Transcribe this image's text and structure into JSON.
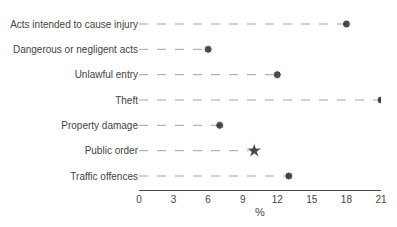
{
  "chart_data": {
    "type": "lollipop",
    "orientation": "horizontal",
    "categories": [
      "Acts intended to cause injury",
      "Dangerous or negligent acts",
      "Unlawful entry",
      "Theft",
      "Property damage",
      "Public order",
      "Traffic offences"
    ],
    "values": [
      18.0,
      6.0,
      12.0,
      21.0,
      7.0,
      10.0,
      13.0
    ],
    "markers": [
      "circle",
      "circle",
      "circle",
      "circle",
      "circle",
      "star",
      "circle"
    ],
    "color": "black",
    "line_style": "dashed",
    "xlabel": "%",
    "xlim": [
      0,
      21
    ],
    "xticks": [
      0,
      3,
      6,
      9,
      12,
      15,
      18,
      21
    ],
    "grid": false
  }
}
